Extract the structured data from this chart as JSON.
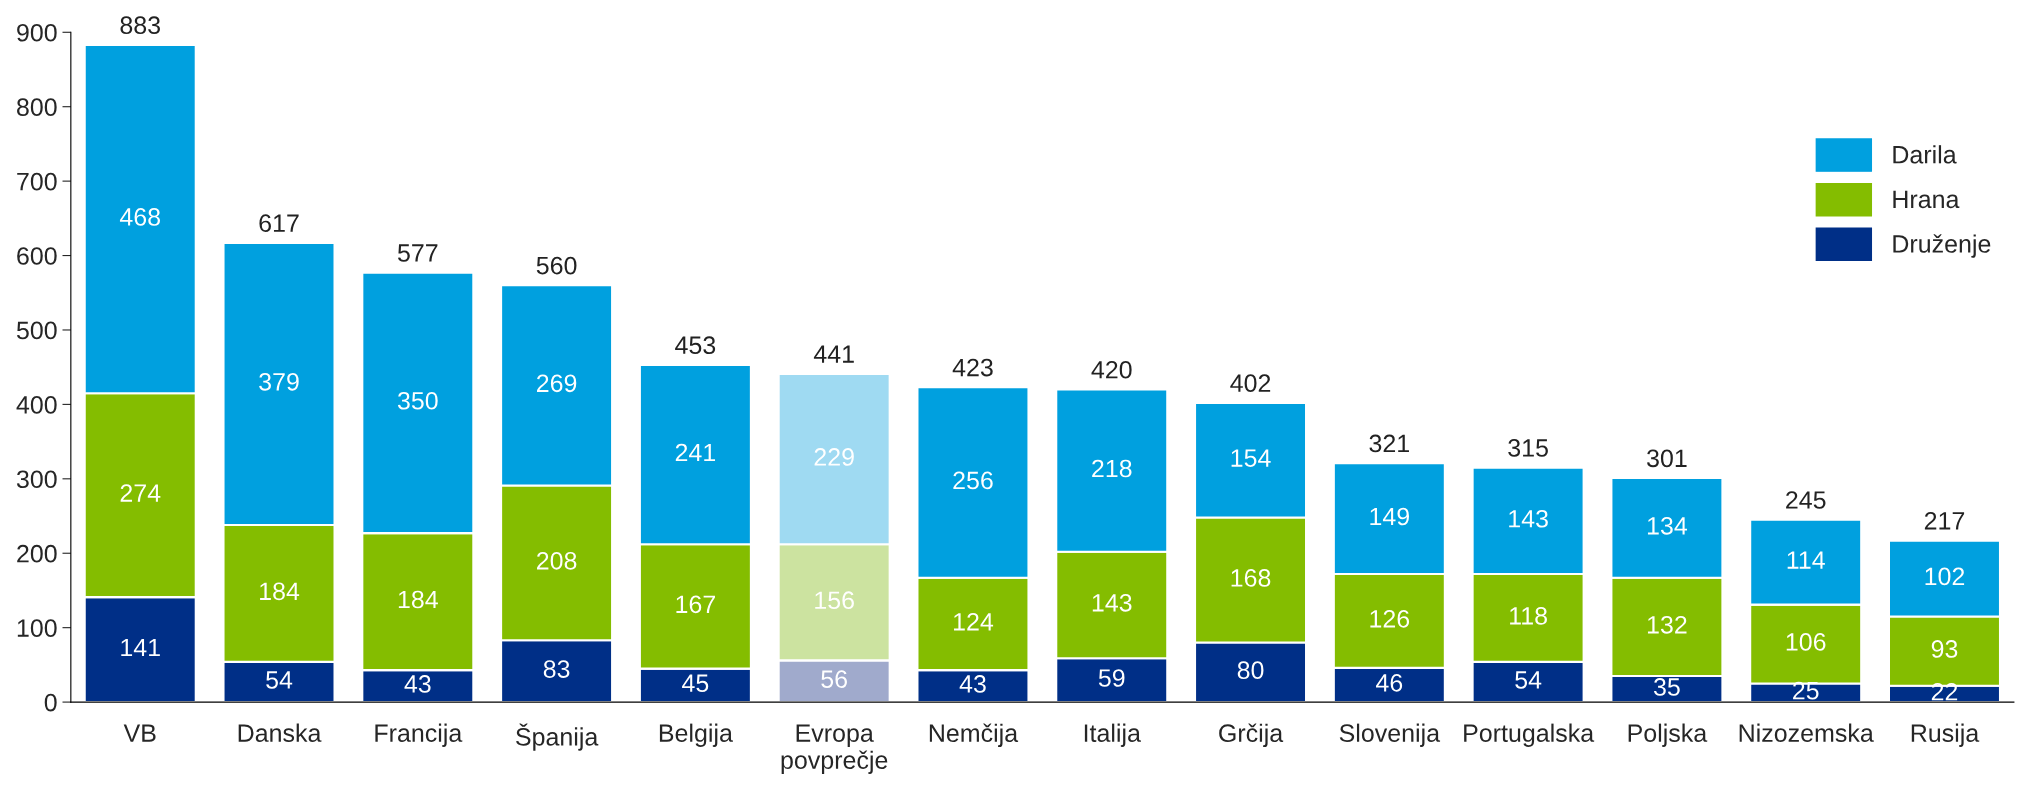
{
  "chart_data": {
    "type": "bar",
    "stacked": true,
    "categories": [
      "VB",
      "Danska",
      "Francija",
      "Španija",
      "Belgija",
      "Evropa povprečje",
      "Nemčija",
      "Italija",
      "Grčija",
      "Slovenija",
      "Portugalska",
      "Poljska",
      "Nizozemska",
      "Rusija"
    ],
    "series": [
      {
        "name": "Druženje",
        "color": "#002f87",
        "colors": [
          "#002f87",
          "#002f87",
          "#002f87",
          "#002f87",
          "#002f87",
          "#a0aacc",
          "#002f87",
          "#002f87",
          "#002f87",
          "#002f87",
          "#002f87",
          "#002f87",
          "#002f87",
          "#002f87"
        ],
        "values": [
          141,
          54,
          43,
          83,
          45,
          56,
          43,
          59,
          80,
          46,
          54,
          35,
          25,
          22
        ]
      },
      {
        "name": "Hrana",
        "color": "#84bd00",
        "colors": [
          "#84bd00",
          "#84bd00",
          "#84bd00",
          "#84bd00",
          "#84bd00",
          "#cce3a0",
          "#84bd00",
          "#84bd00",
          "#84bd00",
          "#84bd00",
          "#84bd00",
          "#84bd00",
          "#84bd00",
          "#84bd00"
        ],
        "values": [
          274,
          184,
          184,
          208,
          167,
          156,
          124,
          143,
          168,
          126,
          118,
          132,
          106,
          93
        ]
      },
      {
        "name": "Darila",
        "color": "#00a0df",
        "colors": [
          "#00a0df",
          "#00a0df",
          "#00a0df",
          "#00a0df",
          "#00a0df",
          "#9fdaf2",
          "#00a0df",
          "#00a0df",
          "#00a0df",
          "#00a0df",
          "#00a0df",
          "#00a0df",
          "#00a0df",
          "#00a0df"
        ],
        "values": [
          468,
          379,
          350,
          269,
          241,
          229,
          256,
          218,
          154,
          149,
          143,
          134,
          114,
          102
        ]
      }
    ],
    "totals": [
      "883",
      "617",
      "577",
      "560",
      "453",
      "441",
      "423",
      "420",
      "402",
      "321",
      "315",
      "301",
      "245",
      "217"
    ],
    "data_labels": true,
    "ylim": [
      0,
      900
    ],
    "yticks": [
      0,
      100,
      200,
      300,
      400,
      500,
      600,
      700,
      800,
      900
    ],
    "grid": false,
    "legend": "right"
  }
}
